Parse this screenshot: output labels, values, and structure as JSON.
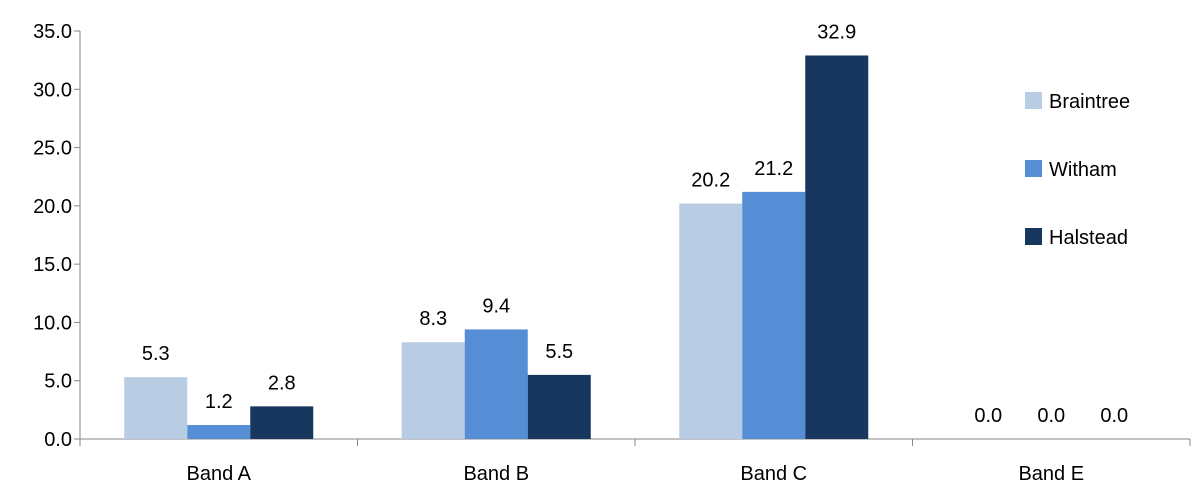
{
  "chart_data": {
    "type": "bar",
    "categories": [
      "Band A",
      "Band B",
      "Band C",
      "Band E"
    ],
    "series": [
      {
        "name": "Braintree",
        "values": [
          5.3,
          8.3,
          20.2,
          0.0
        ],
        "color": "#b8cce4"
      },
      {
        "name": "Witham",
        "values": [
          1.2,
          9.4,
          21.2,
          0.0
        ],
        "color": "#558ed5"
      },
      {
        "name": "Halstead",
        "values": [
          2.8,
          5.5,
          32.9,
          0.0
        ],
        "color": "#17375e"
      }
    ],
    "ylim": [
      0,
      35
    ],
    "yticks": [
      0,
      5,
      10,
      15,
      20,
      25,
      30,
      35
    ],
    "ytick_labels": [
      "0.0",
      "5.0",
      "10.0",
      "15.0",
      "20.0",
      "25.0",
      "30.0",
      "35.0"
    ],
    "data_labels": [
      [
        "5.3",
        "8.3",
        "20.2",
        "0.0"
      ],
      [
        "1.2",
        "9.4",
        "21.2",
        "0.0"
      ],
      [
        "2.8",
        "5.5",
        "32.9",
        "0.0"
      ]
    ],
    "grid": false,
    "legend_position": "right"
  }
}
